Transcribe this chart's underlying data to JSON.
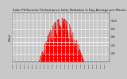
{
  "title": "Solar PV/Inverter Performance Solar Radiation & Day Average per Minute",
  "title_fontsize": 2.8,
  "bg_color": "#c8c8c8",
  "plot_bg_color": "#c8c8c8",
  "fill_color": "#ff0000",
  "line_color": "#dd0000",
  "avg_line_color": "#ffffff",
  "grid_color": "#ffffff",
  "ylabel": "W/m2",
  "ylabel_fontsize": 2.5,
  "ylim": [
    0,
    1200
  ],
  "yticks": [
    200,
    400,
    600,
    800,
    1000
  ],
  "num_points": 1440,
  "peak_value": 1050,
  "avg_value": 480,
  "seed": 99
}
